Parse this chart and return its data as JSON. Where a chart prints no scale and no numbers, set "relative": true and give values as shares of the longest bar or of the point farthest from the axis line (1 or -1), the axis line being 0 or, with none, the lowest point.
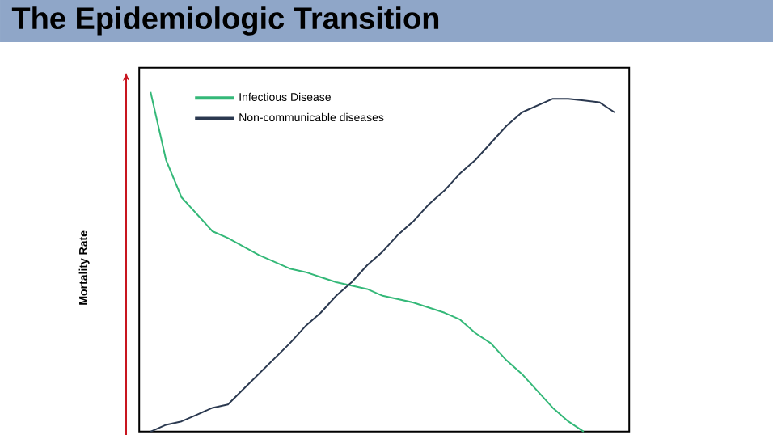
{
  "chart_data": {
    "type": "line",
    "title": "The Epidemiologic Transition",
    "ylabel": "Mortality Rate",
    "relative": true,
    "legend": "top left",
    "categories": [
      null,
      null,
      null,
      null,
      null,
      null,
      null,
      null,
      null,
      null,
      null,
      null,
      null,
      null,
      null,
      null,
      null,
      null,
      null,
      null,
      null,
      null,
      null,
      null,
      null,
      null,
      null,
      null,
      null,
      null,
      null
    ],
    "series": [
      {
        "name": "Infectious Disease",
        "color": "#34b878",
        "values": [
          1.0,
          0.8,
          0.69,
          0.64,
          0.59,
          0.57,
          0.545,
          0.52,
          0.5,
          0.48,
          0.47,
          0.455,
          0.44,
          0.43,
          0.42,
          0.4,
          0.39,
          0.38,
          0.365,
          0.35,
          0.33,
          0.29,
          0.26,
          0.21,
          0.17,
          0.12,
          0.07,
          0.03,
          0,
          null,
          null
        ]
      },
      {
        "name": "Non-communicable diseases",
        "color": "#2b3950",
        "values": [
          0,
          0.02,
          0.03,
          0.05,
          0.07,
          0.08,
          0.125,
          0.17,
          0.215,
          0.26,
          0.31,
          0.35,
          0.4,
          0.44,
          0.49,
          0.53,
          0.58,
          0.62,
          0.67,
          0.71,
          0.76,
          0.8,
          0.85,
          0.9,
          0.94,
          0.96,
          0.98,
          0.98,
          0.975,
          0.97,
          0.94
        ]
      }
    ]
  }
}
